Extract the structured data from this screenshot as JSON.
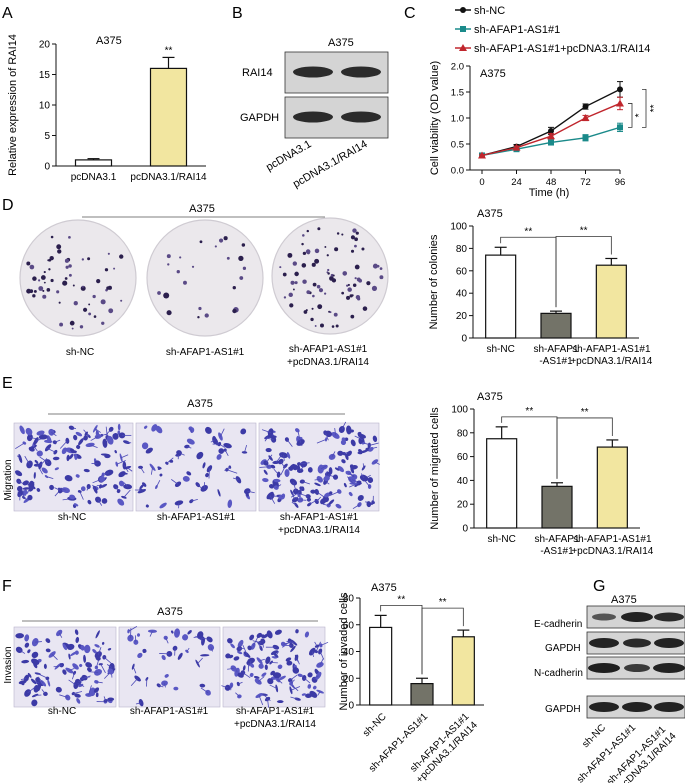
{
  "panels": {
    "A": {
      "letter": "A",
      "cell_line": "A375",
      "chart_ref": "chart_data.0"
    },
    "B": {
      "letter": "B",
      "cell_line": "A375",
      "rows": [
        "RAI14",
        "GAPDH"
      ],
      "lanes": [
        "pcDNA3.1",
        "pcDNA3.1/RAI14"
      ]
    },
    "C": {
      "letter": "C",
      "cell_line": "A375",
      "chart_ref": "chart_data.1"
    },
    "D": {
      "letter": "D",
      "cell_line": "A375",
      "images": [
        {
          "label": "sh-NC",
          "label2": ""
        },
        {
          "label": "sh-AFAP1-AS1#1",
          "label2": ""
        },
        {
          "label": "sh-AFAP1-AS1#1",
          "label2": "+pcDNA3.1/RAI14"
        }
      ],
      "chart_cell_line": "A375",
      "chart_ref": "chart_data.2"
    },
    "E": {
      "letter": "E",
      "cell_line": "A375",
      "side_label": "Migration",
      "images": [
        {
          "label": "sh-NC",
          "label2": ""
        },
        {
          "label": "sh-AFAP1-AS1#1",
          "label2": ""
        },
        {
          "label": "sh-AFAP1-AS1#1",
          "label2": "+pcDNA3.1/RAI14"
        }
      ],
      "chart_cell_line": "A375",
      "chart_ref": "chart_data.3"
    },
    "F": {
      "letter": "F",
      "cell_line": "A375",
      "side_label": "Invasion",
      "images": [
        {
          "label": "sh-NC",
          "label2": ""
        },
        {
          "label": "sh-AFAP1-AS1#1",
          "label2": ""
        },
        {
          "label": "sh-AFAP1-AS1#1",
          "label2": "+pcDNA3.1/RAI14"
        }
      ],
      "chart_cell_line": "A375",
      "chart_ref": "chart_data.4"
    },
    "G": {
      "letter": "G",
      "cell_line": "A375",
      "rows": [
        "E-cadherin",
        "GAPDH",
        "N-cadherin",
        "GAPDH"
      ],
      "lanes": [
        "sh-NC",
        "sh-AFAP1-AS1#1",
        "sh-AFAP1-AS1#1\n+pcDNA3.1/RAI14"
      ]
    }
  },
  "chart_data": [
    {
      "type": "bar",
      "title": "A375",
      "ylabel": "Relative expression of RAI14",
      "xlabel": "",
      "categories": [
        "pcDNA3.1",
        "pcDNA3.1/RAI14"
      ],
      "values": [
        1.0,
        16.0
      ],
      "errors": [
        0.2,
        1.8
      ],
      "ylim": [
        0,
        20
      ],
      "yticks": [
        0,
        5,
        10,
        15,
        20
      ],
      "fills": [
        "#ffffff",
        "#f2e6a0"
      ],
      "significance": [
        {
          "bar": 1,
          "label": "**"
        }
      ]
    },
    {
      "type": "line",
      "title": "A375",
      "ylabel": "Cell viability (OD value)",
      "xlabel": "Time (h)",
      "x": [
        0,
        24,
        48,
        72,
        96
      ],
      "xlim": [
        0,
        96
      ],
      "ylim": [
        0,
        2.0
      ],
      "yticks": [
        0.0,
        0.5,
        1.0,
        1.5,
        2.0
      ],
      "series": [
        {
          "name": "sh-NC",
          "values": [
            0.28,
            0.45,
            0.75,
            1.22,
            1.55
          ],
          "errors": [
            0.02,
            0.04,
            0.07,
            0.05,
            0.15
          ],
          "color": "#111111",
          "marker": "circle"
        },
        {
          "name": "sh-AFAP1-AS1#1",
          "values": [
            0.28,
            0.4,
            0.53,
            0.62,
            0.82
          ],
          "errors": [
            0.02,
            0.03,
            0.05,
            0.06,
            0.08
          ],
          "color": "#1a8a8a",
          "marker": "square"
        },
        {
          "name": "sh-AFAP1-AS1#1+pcDNA3.1/RAI14",
          "values": [
            0.28,
            0.43,
            0.65,
            1.0,
            1.28
          ],
          "errors": [
            0.02,
            0.03,
            0.05,
            0.05,
            0.12
          ],
          "color": "#c0262d",
          "marker": "triangle"
        }
      ],
      "significance": [
        {
          "label": "*"
        },
        {
          "label": "**"
        }
      ]
    },
    {
      "type": "bar",
      "title": "A375",
      "ylabel": "Number of colonies",
      "categories": [
        "sh-NC",
        "sh-AFAP1\n-AS1#1",
        "sh-AFAP1-AS1#1\n+pcDNA3.1/RAI14"
      ],
      "values": [
        74,
        22,
        65
      ],
      "errors": [
        7,
        2,
        6
      ],
      "ylim": [
        0,
        100
      ],
      "yticks": [
        0,
        20,
        40,
        60,
        80,
        100
      ],
      "fills": [
        "#ffffff",
        "#737368",
        "#f2e6a0"
      ],
      "significance": [
        {
          "from": 0,
          "to": 1,
          "label": "**"
        },
        {
          "from": 1,
          "to": 2,
          "label": "**"
        }
      ]
    },
    {
      "type": "bar",
      "title": "A375",
      "ylabel": "Number of migrated cells",
      "categories": [
        "sh-NC",
        "sh-AFAP1\n-AS1#1",
        "sh-AFAP1-AS1#1\n+pcDNA3.1/RAI14"
      ],
      "values": [
        75,
        35,
        68
      ],
      "errors": [
        10,
        3,
        6
      ],
      "ylim": [
        0,
        100
      ],
      "yticks": [
        0,
        20,
        40,
        60,
        80,
        100
      ],
      "fills": [
        "#ffffff",
        "#737368",
        "#f2e6a0"
      ],
      "significance": [
        {
          "from": 0,
          "to": 1,
          "label": "**"
        },
        {
          "from": 1,
          "to": 2,
          "label": "**"
        }
      ]
    },
    {
      "type": "bar",
      "title": "A375",
      "ylabel": "Number of invaded cells",
      "categories": [
        "sh-NC",
        "sh-AFAP1-AS1#1",
        "sh-AFAP1-AS1#1\n+pcDNA3.1/RAI14"
      ],
      "values": [
        58,
        16,
        51
      ],
      "errors": [
        9,
        4,
        5
      ],
      "ylim": [
        0,
        80
      ],
      "yticks": [
        0,
        20,
        40,
        60,
        80
      ],
      "fills": [
        "#ffffff",
        "#737368",
        "#f2e6a0"
      ],
      "significance": [
        {
          "from": 0,
          "to": 1,
          "label": "**"
        },
        {
          "from": 1,
          "to": 2,
          "label": "**"
        }
      ]
    }
  ]
}
